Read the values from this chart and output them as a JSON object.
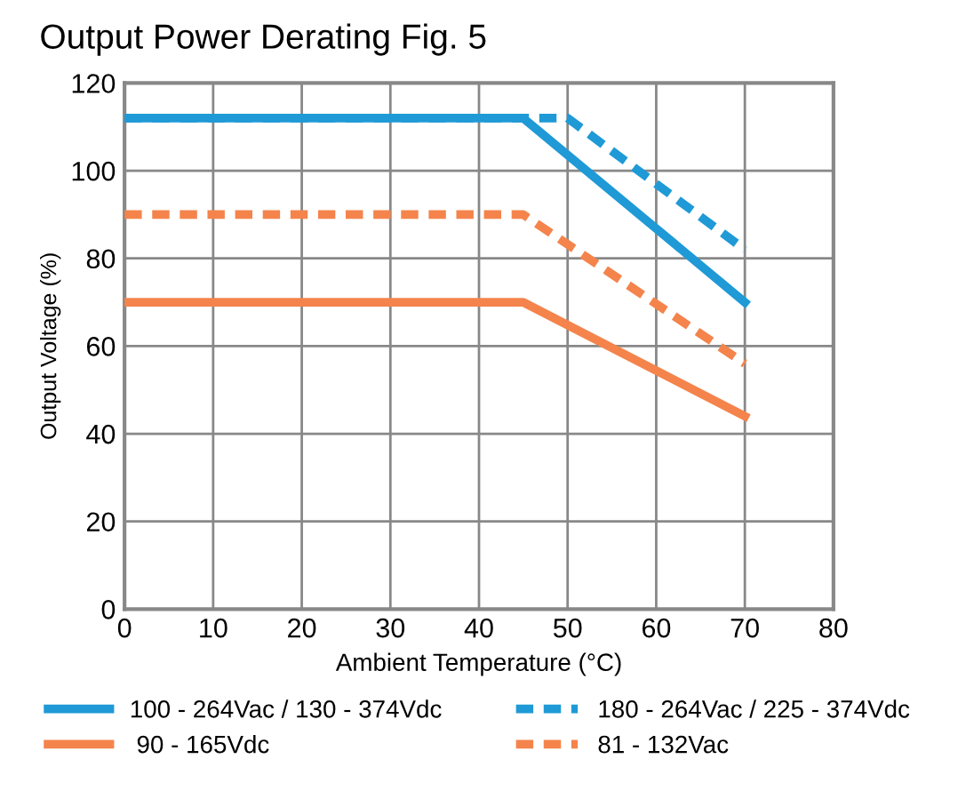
{
  "chart_data": {
    "type": "line",
    "title": "Output Power Derating Fig. 5",
    "xlabel": "Ambient Temperature (°C)",
    "ylabel": "Output Voltage (%)",
    "series": [
      {
        "name": "100 - 264Vac / 130 - 374Vdc",
        "color": "#1f9ad6",
        "x": [
          0,
          45,
          70
        ],
        "values": [
          112,
          112,
          70
        ],
        "line_style": "solid"
      },
      {
        "name": "180 - 264Vac / 225 - 374Vdc",
        "color": "#1f9ad6",
        "x": [
          0,
          50,
          70
        ],
        "values": [
          112,
          112,
          82
        ],
        "line_style": "dashed"
      },
      {
        "name": " 90 - 165Vdc",
        "color": "#f4844c",
        "x": [
          0,
          45,
          70
        ],
        "values": [
          70,
          70,
          44
        ],
        "line_style": "solid"
      },
      {
        "name": "81 - 132Vac",
        "color": "#f4844c",
        "x": [
          0,
          45,
          70
        ],
        "values": [
          90,
          90,
          56
        ],
        "line_style": "dashed"
      }
    ],
    "xlim": [
      0,
      80
    ],
    "xticks": [
      0,
      10,
      20,
      30,
      40,
      50,
      60,
      70,
      80
    ],
    "ylim": [
      0,
      120
    ],
    "yticks": [
      0,
      20,
      40,
      60,
      80,
      100,
      120
    ],
    "grid": true,
    "legend": "bottom",
    "marker": "none"
  }
}
